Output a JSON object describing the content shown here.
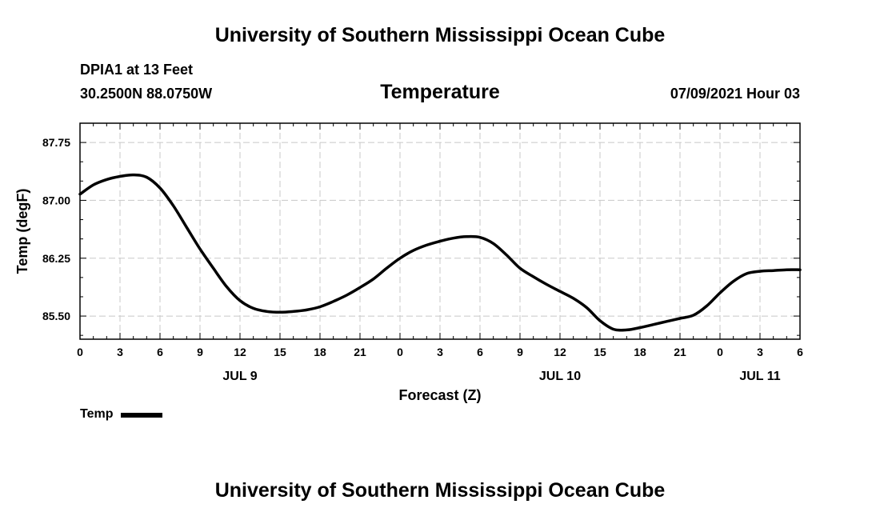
{
  "header": {
    "top_title": "University of Southern Mississippi Ocean Cube",
    "station_name": "DPIA1 at 13 Feet",
    "station_coords": "30.2500N  88.0750W",
    "chart_title": "Temperature",
    "datetime": "07/09/2021 Hour 03"
  },
  "footer": {
    "bottom_title": "University of Southern Mississippi Ocean Cube"
  },
  "legend": {
    "label": "Temp",
    "color": "#000000"
  },
  "chart_data": {
    "type": "line",
    "title": "Temperature",
    "xlabel": "Forecast (Z)",
    "ylabel": "Temp (degF)",
    "ylim": [
      85.2,
      88.0
    ],
    "xlim": [
      0,
      54
    ],
    "grid": true,
    "y_ticks": [
      85.5,
      86.25,
      87.0,
      87.75
    ],
    "y_tick_labels": [
      "85.50",
      "86.25",
      "87.00",
      "87.75"
    ],
    "x_ticks": [
      0,
      3,
      6,
      9,
      12,
      15,
      18,
      21,
      24,
      27,
      30,
      33,
      36,
      39,
      42,
      45,
      48,
      51,
      54
    ],
    "x_tick_labels": [
      "0",
      "3",
      "6",
      "9",
      "12",
      "15",
      "18",
      "21",
      "0",
      "3",
      "6",
      "9",
      "12",
      "15",
      "18",
      "21",
      "0",
      "3",
      "6"
    ],
    "date_labels": [
      {
        "x": 12,
        "label": "JUL 9"
      },
      {
        "x": 36,
        "label": "JUL 10"
      },
      {
        "x": 51,
        "label": "JUL 11"
      }
    ],
    "series": [
      {
        "name": "Temp",
        "color": "#000000",
        "x": [
          0,
          1,
          2,
          3,
          4,
          5,
          6,
          7,
          8,
          9,
          10,
          11,
          12,
          13,
          14,
          15,
          16,
          17,
          18,
          19,
          20,
          21,
          22,
          23,
          24,
          25,
          26,
          27,
          28,
          29,
          30,
          31,
          32,
          33,
          34,
          35,
          36,
          37,
          38,
          39,
          40,
          41,
          42,
          43,
          44,
          45,
          46,
          47,
          48,
          49,
          50,
          51,
          52,
          53,
          54
        ],
        "values": [
          87.08,
          87.2,
          87.27,
          87.31,
          87.33,
          87.3,
          87.16,
          86.93,
          86.65,
          86.37,
          86.12,
          85.88,
          85.7,
          85.6,
          85.56,
          85.55,
          85.56,
          85.58,
          85.62,
          85.69,
          85.77,
          85.87,
          85.98,
          86.12,
          86.25,
          86.35,
          86.42,
          86.47,
          86.51,
          86.53,
          86.52,
          86.44,
          86.29,
          86.12,
          86.01,
          85.91,
          85.82,
          85.73,
          85.61,
          85.44,
          85.33,
          85.32,
          85.35,
          85.39,
          85.43,
          85.47,
          85.51,
          85.63,
          85.8,
          85.95,
          86.05,
          86.08,
          86.09,
          86.1,
          86.1
        ]
      }
    ]
  }
}
